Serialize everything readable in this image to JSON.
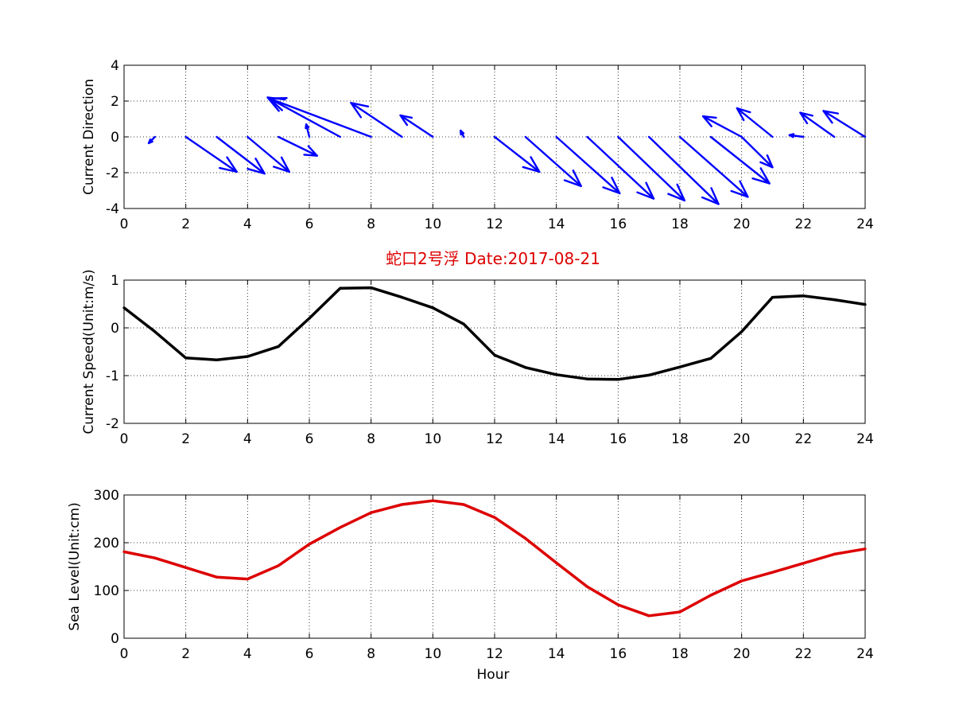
{
  "colors": {
    "quiver": "#0000ff",
    "speed": "#000000",
    "sea_level": "#dd0000",
    "title": "#dd0000"
  },
  "chart_data": [
    {
      "type": "quiver",
      "ylabel": "Current Direction",
      "xlim": [
        0,
        24
      ],
      "ylim": [
        -4,
        4
      ],
      "xticks": [
        "0",
        "2",
        "4",
        "6",
        "8",
        "10",
        "12",
        "14",
        "16",
        "18",
        "20",
        "22",
        "24"
      ],
      "yticks": [
        "4",
        "2",
        "0",
        "-2",
        "-4"
      ],
      "grid": true,
      "arrows": [
        {
          "x": 1,
          "u": -0.2,
          "v": -0.35
        },
        {
          "x": 2,
          "u": 1.65,
          "v": -1.95
        },
        {
          "x": 3,
          "u": 1.55,
          "v": -2.05
        },
        {
          "x": 4,
          "u": 1.35,
          "v": -1.95
        },
        {
          "x": 5,
          "u": 1.25,
          "v": -1.05
        },
        {
          "x": 6,
          "u": -0.1,
          "v": 0.7
        },
        {
          "x": 7,
          "u": -2.35,
          "v": 2.2
        },
        {
          "x": 8,
          "u": -3.3,
          "v": 2.15
        },
        {
          "x": 9,
          "u": -1.65,
          "v": 1.9
        },
        {
          "x": 10,
          "u": -1.05,
          "v": 1.2
        },
        {
          "x": 11,
          "u": -0.1,
          "v": 0.35
        },
        {
          "x": 12,
          "u": 1.45,
          "v": -1.95
        },
        {
          "x": 13,
          "u": 1.8,
          "v": -2.75
        },
        {
          "x": 14,
          "u": 2.05,
          "v": -3.15
        },
        {
          "x": 15,
          "u": 2.15,
          "v": -3.45
        },
        {
          "x": 16,
          "u": 2.15,
          "v": -3.55
        },
        {
          "x": 17,
          "u": 2.25,
          "v": -3.75
        },
        {
          "x": 18,
          "u": 2.2,
          "v": -3.35
        },
        {
          "x": 19,
          "u": 1.9,
          "v": -2.6
        },
        {
          "x": 20,
          "u": -1.25,
          "v": 1.15
        },
        {
          "x": 21,
          "u": -1.15,
          "v": 1.6
        },
        {
          "x": 22,
          "u": -0.45,
          "v": 0.1
        },
        {
          "x": 23,
          "u": -1.1,
          "v": 1.35
        },
        {
          "x": 24,
          "u": -1.35,
          "v": 1.45
        },
        {
          "x": 20,
          "u": 1.0,
          "v": -1.7
        }
      ]
    },
    {
      "type": "line",
      "title": "蛇口2号浮   Date:2017-08-21",
      "ylabel": "Current Speed(Unit:m/s)",
      "xlim": [
        0,
        24
      ],
      "ylim": [
        -2,
        1
      ],
      "xticks": [
        "0",
        "2",
        "4",
        "6",
        "8",
        "10",
        "12",
        "14",
        "16",
        "18",
        "20",
        "22",
        "24"
      ],
      "yticks": [
        "1",
        "0",
        "-1",
        "-2"
      ],
      "grid": true,
      "x": [
        0,
        1,
        2,
        3,
        4,
        5,
        6,
        7,
        8,
        9,
        10,
        11,
        12,
        13,
        14,
        15,
        16,
        17,
        18,
        19,
        20,
        21,
        22,
        23,
        24
      ],
      "values": [
        0.42,
        -0.08,
        -0.63,
        -0.67,
        -0.6,
        -0.39,
        0.2,
        0.83,
        0.84,
        0.64,
        0.42,
        0.08,
        -0.57,
        -0.83,
        -0.98,
        -1.07,
        -1.08,
        -0.99,
        -0.82,
        -0.64,
        -0.08,
        0.64,
        0.67,
        0.59,
        0.49
      ]
    },
    {
      "type": "line",
      "xlabel": "Hour",
      "ylabel": "Sea Level(Unit:cm)",
      "xlim": [
        0,
        24
      ],
      "ylim": [
        0,
        300
      ],
      "xticks": [
        "0",
        "2",
        "4",
        "6",
        "8",
        "10",
        "12",
        "14",
        "16",
        "18",
        "20",
        "22",
        "24"
      ],
      "yticks": [
        "300",
        "200",
        "100",
        "0"
      ],
      "grid": true,
      "x": [
        0,
        1,
        2,
        3,
        4,
        5,
        6,
        7,
        8,
        9,
        10,
        11,
        12,
        13,
        14,
        15,
        16,
        17,
        18,
        19,
        20,
        21,
        22,
        23,
        24
      ],
      "values": [
        181,
        168,
        148,
        128,
        124,
        152,
        197,
        232,
        263,
        280,
        288,
        280,
        253,
        209,
        158,
        108,
        70,
        47,
        55,
        90,
        120,
        138,
        157,
        176,
        187
      ]
    }
  ]
}
